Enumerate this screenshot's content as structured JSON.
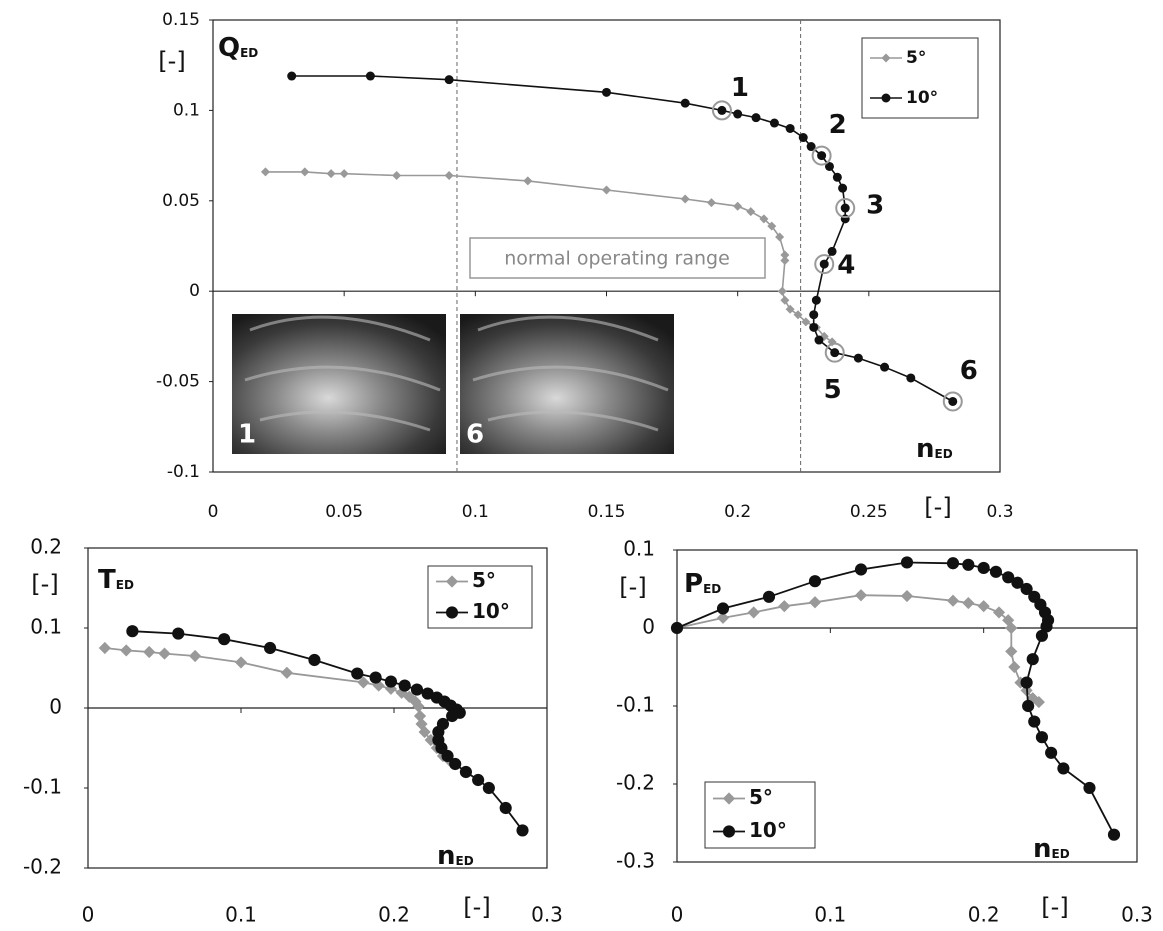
{
  "chart_data": [
    {
      "type": "line",
      "xlim": [
        0,
        0.3
      ],
      "ylim": [
        -0.1,
        0.15
      ],
      "xticks": [
        0,
        0.05,
        0.1,
        0.15,
        0.2,
        0.25,
        0.3
      ],
      "yticks": [
        0.15,
        0.1,
        0.05,
        0,
        -0.05,
        -0.1
      ],
      "ylabel": "Q",
      "ylabel_sub": "ED",
      "yunit": "[-]",
      "xlabel": "n",
      "xlabel_sub": "ED",
      "xunit": "[-]",
      "legend": "upper right",
      "vlines": [
        0.093,
        0.224
      ],
      "annotation": "normal operating range",
      "point_labels": [
        "1",
        "2",
        "3",
        "4",
        "5",
        "6"
      ],
      "inset_labels": [
        "1",
        "6"
      ],
      "series": [
        {
          "name": "5°",
          "color": "#999999",
          "marker": "diamond",
          "x": [
            0.02,
            0.035,
            0.045,
            0.05,
            0.07,
            0.09,
            0.12,
            0.15,
            0.18,
            0.19,
            0.2,
            0.205,
            0.21,
            0.213,
            0.216,
            0.218,
            0.218,
            0.217,
            0.218,
            0.22,
            0.223,
            0.226,
            0.23,
            0.233,
            0.236
          ],
          "values": [
            0.066,
            0.066,
            0.065,
            0.065,
            0.064,
            0.064,
            0.061,
            0.056,
            0.051,
            0.049,
            0.047,
            0.044,
            0.04,
            0.036,
            0.03,
            0.02,
            0.017,
            0.0,
            -0.005,
            -0.01,
            -0.013,
            -0.017,
            -0.02,
            -0.025,
            -0.028
          ]
        },
        {
          "name": "10°",
          "color": "#111111",
          "marker": "circle",
          "x": [
            0.03,
            0.06,
            0.09,
            0.15,
            0.18,
            0.194,
            0.2,
            0.207,
            0.214,
            0.22,
            0.225,
            0.228,
            0.232,
            0.235,
            0.238,
            0.24,
            0.241,
            0.241,
            0.236,
            0.233,
            0.23,
            0.229,
            0.229,
            0.231,
            0.237,
            0.246,
            0.256,
            0.266,
            0.282
          ],
          "values": [
            0.119,
            0.119,
            0.117,
            0.11,
            0.104,
            0.1,
            0.098,
            0.096,
            0.093,
            0.09,
            0.085,
            0.08,
            0.075,
            0.069,
            0.063,
            0.057,
            0.046,
            0.04,
            0.022,
            0.015,
            -0.005,
            -0.013,
            -0.02,
            -0.027,
            -0.034,
            -0.037,
            -0.042,
            -0.048,
            -0.061
          ]
        }
      ]
    },
    {
      "type": "line",
      "xlim": [
        0,
        0.3
      ],
      "ylim": [
        -0.2,
        0.2
      ],
      "xticks": [
        0,
        0.1,
        0.2,
        0.3
      ],
      "yticks": [
        0.2,
        0.1,
        0,
        -0.1,
        -0.2
      ],
      "ylabel": "T",
      "ylabel_sub": "ED",
      "yunit": "[-]",
      "xlabel": "n",
      "xlabel_sub": "ED",
      "xunit": "[-]",
      "legend": "upper right",
      "series": [
        {
          "name": "5°",
          "color": "#999999",
          "marker": "diamond",
          "x": [
            0.011,
            0.025,
            0.04,
            0.05,
            0.07,
            0.1,
            0.13,
            0.18,
            0.19,
            0.198,
            0.205,
            0.21,
            0.214,
            0.216,
            0.217,
            0.218,
            0.22,
            0.224,
            0.228,
            0.232,
            0.236
          ],
          "values": [
            0.075,
            0.072,
            0.07,
            0.068,
            0.065,
            0.057,
            0.044,
            0.032,
            0.028,
            0.024,
            0.019,
            0.014,
            0.008,
            0.002,
            -0.01,
            -0.02,
            -0.03,
            -0.04,
            -0.05,
            -0.06,
            -0.065
          ]
        },
        {
          "name": "10°",
          "color": "#111111",
          "marker": "circle",
          "x": [
            0.029,
            0.059,
            0.089,
            0.119,
            0.148,
            0.176,
            0.188,
            0.198,
            0.207,
            0.215,
            0.222,
            0.228,
            0.233,
            0.237,
            0.241,
            0.243,
            0.238,
            0.232,
            0.229,
            0.229,
            0.231,
            0.235,
            0.24,
            0.247,
            0.255,
            0.262,
            0.273,
            0.284
          ],
          "values": [
            0.096,
            0.093,
            0.086,
            0.075,
            0.06,
            0.043,
            0.038,
            0.033,
            0.028,
            0.023,
            0.018,
            0.013,
            0.008,
            0.003,
            -0.002,
            -0.006,
            -0.01,
            -0.02,
            -0.03,
            -0.04,
            -0.05,
            -0.06,
            -0.07,
            -0.08,
            -0.09,
            -0.1,
            -0.125,
            -0.153
          ]
        }
      ]
    },
    {
      "type": "line",
      "xlim": [
        0,
        0.3
      ],
      "ylim": [
        -0.3,
        0.1
      ],
      "xticks": [
        0,
        0.1,
        0.2,
        0.3
      ],
      "yticks": [
        0.1,
        0,
        -0.1,
        -0.2,
        -0.3
      ],
      "ylabel": "P",
      "ylabel_sub": "ED",
      "yunit": "[-]",
      "xlabel": "n",
      "xlabel_sub": "ED",
      "xunit": "[-]",
      "legend": "lower left",
      "series": [
        {
          "name": "5°",
          "color": "#999999",
          "marker": "diamond",
          "x": [
            0,
            0.03,
            0.05,
            0.07,
            0.09,
            0.12,
            0.15,
            0.18,
            0.19,
            0.2,
            0.21,
            0.216,
            0.218,
            0.218,
            0.22,
            0.224,
            0.228,
            0.232,
            0.236
          ],
          "values": [
            0,
            0.013,
            0.02,
            0.028,
            0.033,
            0.042,
            0.041,
            0.035,
            0.032,
            0.028,
            0.02,
            0.01,
            0.0,
            -0.03,
            -0.05,
            -0.07,
            -0.08,
            -0.09,
            -0.095
          ]
        },
        {
          "name": "10°",
          "color": "#111111",
          "marker": "circle",
          "x": [
            0,
            0.03,
            0.06,
            0.09,
            0.12,
            0.15,
            0.18,
            0.19,
            0.2,
            0.208,
            0.216,
            0.222,
            0.228,
            0.233,
            0.237,
            0.24,
            0.242,
            0.241,
            0.238,
            0.232,
            0.228,
            0.229,
            0.233,
            0.238,
            0.244,
            0.252,
            0.269,
            0.285
          ],
          "values": [
            0,
            0.025,
            0.04,
            0.06,
            0.075,
            0.084,
            0.083,
            0.081,
            0.077,
            0.072,
            0.065,
            0.058,
            0.05,
            0.04,
            0.03,
            0.02,
            0.01,
            0.002,
            -0.01,
            -0.04,
            -0.07,
            -0.1,
            -0.12,
            -0.14,
            -0.16,
            -0.18,
            -0.205,
            -0.265
          ]
        }
      ]
    }
  ]
}
